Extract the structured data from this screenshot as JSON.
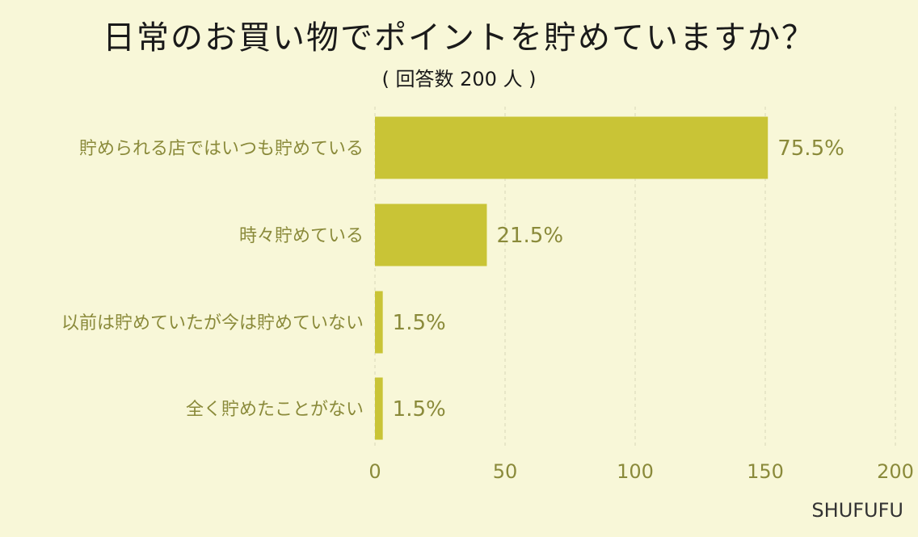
{
  "header": {
    "title": "日常のお買い物でポイントを貯めていますか？",
    "subtitle": "( 回答数 200 人 )"
  },
  "brand": "SHUFUFU",
  "colors": {
    "background": "#F8F7D8",
    "bar": "#C9C436",
    "label": "#8A8A3A",
    "grid": "#D8D7B8"
  },
  "chart_data": {
    "type": "bar",
    "orientation": "horizontal",
    "categories": [
      "貯められる店ではいつも貯めている",
      "時々貯めている",
      "以前は貯めていたが今は貯めていない",
      "全く貯めたことがない"
    ],
    "values": [
      151,
      43,
      3,
      3
    ],
    "data_labels": [
      "75.5%",
      "21.5%",
      "1.5%",
      "1.5%"
    ],
    "xlim": [
      0,
      200
    ],
    "xticks": [
      0,
      50,
      100,
      150,
      200
    ],
    "xtick_labels": [
      "0",
      "50",
      "100",
      "150",
      "200"
    ],
    "grid": true
  }
}
